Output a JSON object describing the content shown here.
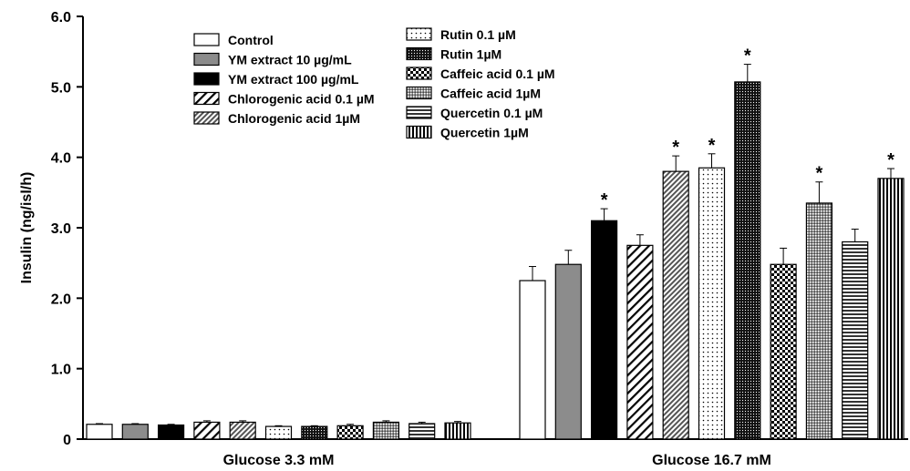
{
  "chart_data": {
    "type": "bar",
    "title": "",
    "xlabel": "",
    "ylabel": "Insulin  (ng/isl/h)",
    "ylim": [
      0,
      6
    ],
    "yticks": [
      "0",
      "1.0",
      "2.0",
      "3.0",
      "4.0",
      "5.0",
      "6.0"
    ],
    "grid": false,
    "legend_position": "top-left",
    "categories": [
      "Glucose 3.3 mM",
      "Glucose 16.7 mM"
    ],
    "series": [
      {
        "name": "Control",
        "pattern": "white",
        "values": [
          0.21,
          2.25
        ],
        "errors": [
          0.01,
          0.2
        ],
        "significant": [
          false,
          false
        ]
      },
      {
        "name": "YM extract 10 µg/mL",
        "pattern": "gray",
        "values": [
          0.21,
          2.48
        ],
        "errors": [
          0.01,
          0.2
        ],
        "significant": [
          false,
          false
        ]
      },
      {
        "name": "YM extract 100 µg/mL",
        "pattern": "black",
        "values": [
          0.2,
          3.1
        ],
        "errors": [
          0.01,
          0.17
        ],
        "significant": [
          false,
          true
        ]
      },
      {
        "name": "Chlorogenic acid  0.1 µM",
        "pattern": "diag-wide",
        "values": [
          0.24,
          2.75
        ],
        "errors": [
          0.02,
          0.15
        ],
        "significant": [
          false,
          false
        ]
      },
      {
        "name": "Chlorogenic acid 1µM",
        "pattern": "diag-dense",
        "values": [
          0.24,
          3.8
        ],
        "errors": [
          0.02,
          0.22
        ],
        "significant": [
          false,
          true
        ]
      },
      {
        "name": "Rutin 0.1 µM",
        "pattern": "dots-sparse",
        "values": [
          0.18,
          3.85
        ],
        "errors": [
          0.01,
          0.2
        ],
        "significant": [
          false,
          true
        ]
      },
      {
        "name": "Rutin 1µM",
        "pattern": "dots-dense",
        "values": [
          0.18,
          5.07
        ],
        "errors": [
          0.01,
          0.25
        ],
        "significant": [
          false,
          true
        ]
      },
      {
        "name": "Caffeic acid 0.1 µM",
        "pattern": "checker",
        "values": [
          0.19,
          2.48
        ],
        "errors": [
          0.02,
          0.23
        ],
        "significant": [
          false,
          false
        ]
      },
      {
        "name": "Caffeic acid 1µM",
        "pattern": "crosshatch",
        "values": [
          0.24,
          3.35
        ],
        "errors": [
          0.02,
          0.3
        ],
        "significant": [
          false,
          true
        ]
      },
      {
        "name": "Quercetin 0.1 µM",
        "pattern": "hlines",
        "values": [
          0.22,
          2.8
        ],
        "errors": [
          0.02,
          0.18
        ],
        "significant": [
          false,
          false
        ]
      },
      {
        "name": "Quercetin 1µM",
        "pattern": "vlines",
        "values": [
          0.23,
          3.7
        ],
        "errors": [
          0.02,
          0.14
        ],
        "significant": [
          false,
          true
        ]
      }
    ],
    "significance_marker": "*"
  }
}
